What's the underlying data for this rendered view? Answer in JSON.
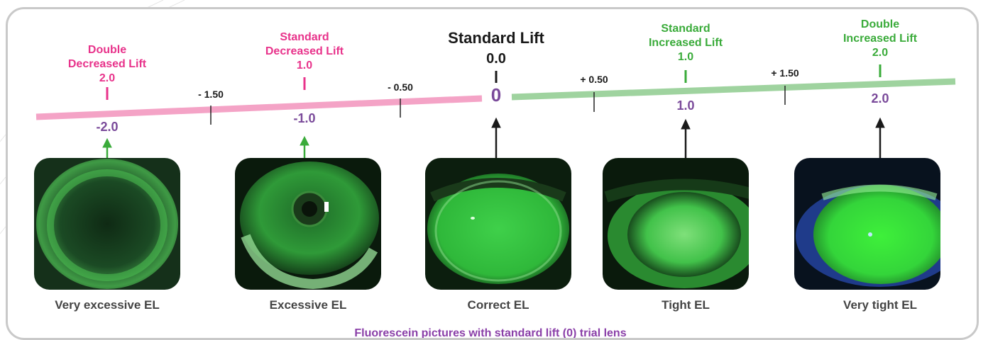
{
  "center": {
    "title": "Standard Lift",
    "value": "0.0",
    "zero": "0"
  },
  "left_labels": [
    {
      "text": "Double\nDecreased Lift\n2.0"
    },
    {
      "text": "Standard\nDecreased Lift\n1.0"
    }
  ],
  "right_labels": [
    {
      "text": "Standard\nIncreased Lift\n1.0"
    },
    {
      "text": "Double\nIncreased Lift\n2.0"
    }
  ],
  "ticks": [
    "- 1.50",
    "- 0.50",
    "+ 0.50",
    "+ 1.50"
  ],
  "values": [
    "-2.0",
    "-1.0",
    "1.0",
    "2.0"
  ],
  "eyes": [
    {
      "caption": "Very excessive EL",
      "icon": "eye-very-excessive-icon"
    },
    {
      "caption": "Excessive EL",
      "icon": "eye-excessive-icon"
    },
    {
      "caption": "Correct EL",
      "icon": "eye-correct-icon"
    },
    {
      "caption": "Tight EL",
      "icon": "eye-tight-icon"
    },
    {
      "caption": "Very tight EL",
      "icon": "eye-very-tight-icon"
    }
  ],
  "footer": "Fluorescein pictures with standard lift (0) trial lens",
  "colors": {
    "decrease": "#e8338b",
    "increase": "#3aab3a",
    "value": "#7a4a9a",
    "pink_bar": "#f4a3c6",
    "green_bar": "#9fd39f"
  }
}
